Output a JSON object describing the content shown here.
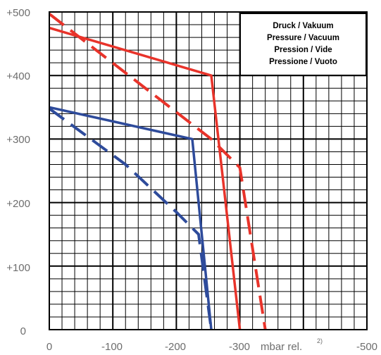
{
  "chart_data": {
    "type": "line",
    "title": "",
    "xlabel": "mbar rel.",
    "xlabel_sup": "2)",
    "ylabel": "",
    "xlim": [
      0,
      -500
    ],
    "ylim": [
      0,
      500
    ],
    "x_ticks": [
      "0",
      "-100",
      "-200",
      "-300",
      "-500"
    ],
    "x_tick_values": [
      0,
      -100,
      -200,
      -300,
      -500
    ],
    "y_ticks": [
      "0",
      "+100",
      "+200",
      "+300",
      "+400",
      "+500"
    ],
    "y_tick_values": [
      0,
      100,
      200,
      300,
      400,
      500
    ],
    "grid": true,
    "legend": {
      "placement": "top-right",
      "lines": [
        "Druck / Vakuum",
        "Pressure / Vacuum",
        "Pression / Vide",
        "Pressione / Vuoto"
      ]
    },
    "series": [
      {
        "color": "#e8332a",
        "style": "solid",
        "points": [
          [
            0,
            475
          ],
          [
            -255,
            400
          ],
          [
            -300,
            0
          ]
        ]
      },
      {
        "color": "#e8332a",
        "style": "dashed",
        "points": [
          [
            0,
            497
          ],
          [
            -190,
            350
          ],
          [
            -255,
            300
          ],
          [
            -300,
            255
          ],
          [
            -340,
            0
          ]
        ]
      },
      {
        "color": "#2e4b9b",
        "style": "solid",
        "points": [
          [
            0,
            350
          ],
          [
            -225,
            300
          ],
          [
            -255,
            0
          ]
        ]
      },
      {
        "color": "#2e4b9b",
        "style": "dashed",
        "points": [
          [
            0,
            348
          ],
          [
            -120,
            260
          ],
          [
            -200,
            185
          ],
          [
            -235,
            150
          ],
          [
            -255,
            0
          ]
        ]
      }
    ]
  }
}
